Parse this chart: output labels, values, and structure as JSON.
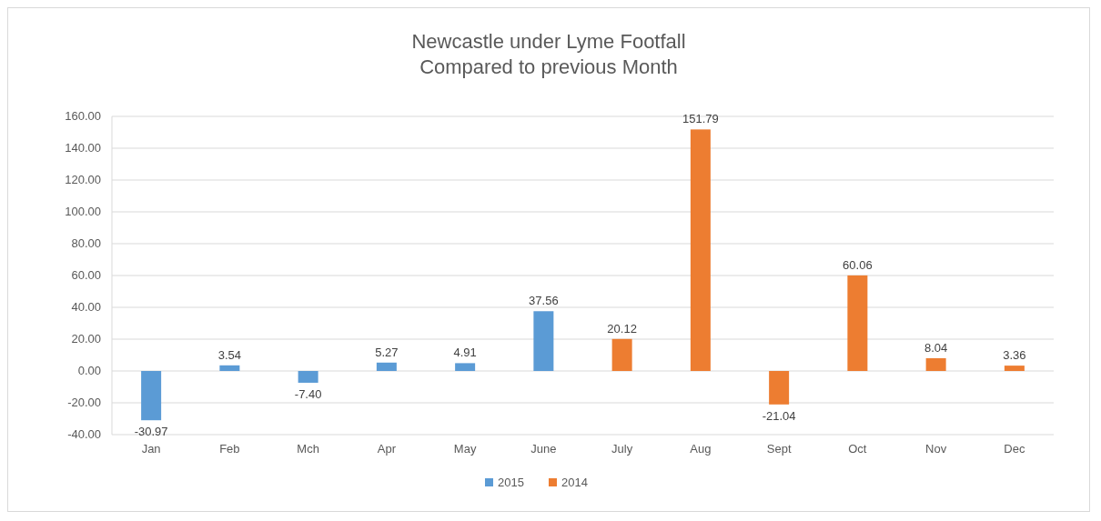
{
  "chart_data": {
    "type": "bar",
    "title": "Newcastle under Lyme Footfall\nCompared to previous Month",
    "categories": [
      "Jan",
      "Feb",
      "Mch",
      "Apr",
      "May",
      "June",
      "July",
      "Aug",
      "Sept",
      "Oct",
      "Nov",
      "Dec"
    ],
    "series": [
      {
        "name": "2015",
        "color": "#5b9bd5",
        "values": [
          -30.97,
          3.54,
          -7.4,
          5.27,
          4.91,
          37.56,
          null,
          null,
          null,
          null,
          null,
          null
        ],
        "value_labels": [
          "-30.97",
          "3.54",
          "-7.40",
          "5.27",
          "4.91",
          "37.56",
          null,
          null,
          null,
          null,
          null,
          null
        ]
      },
      {
        "name": "2014",
        "color": "#ed7d31",
        "values": [
          null,
          null,
          null,
          null,
          null,
          null,
          20.12,
          151.79,
          -21.04,
          60.06,
          8.04,
          3.36
        ],
        "value_labels": [
          null,
          null,
          null,
          null,
          null,
          null,
          "20.12",
          "151.79",
          "-21.04",
          "60.06",
          "8.04",
          "3.36"
        ]
      }
    ],
    "ylim": [
      -40,
      160
    ],
    "yticks": [
      {
        "value": -40,
        "label": "-40.00"
      },
      {
        "value": -20,
        "label": "-20.00"
      },
      {
        "value": 0,
        "label": "0.00"
      },
      {
        "value": 20,
        "label": "20.00"
      },
      {
        "value": 40,
        "label": "40.00"
      },
      {
        "value": 60,
        "label": "60.00"
      },
      {
        "value": 80,
        "label": "80.00"
      },
      {
        "value": 100,
        "label": "100.00"
      },
      {
        "value": 120,
        "label": "120.00"
      },
      {
        "value": 140,
        "label": "140.00"
      },
      {
        "value": 160,
        "label": "160.00"
      }
    ],
    "grid": "y",
    "legend": "bottom"
  }
}
